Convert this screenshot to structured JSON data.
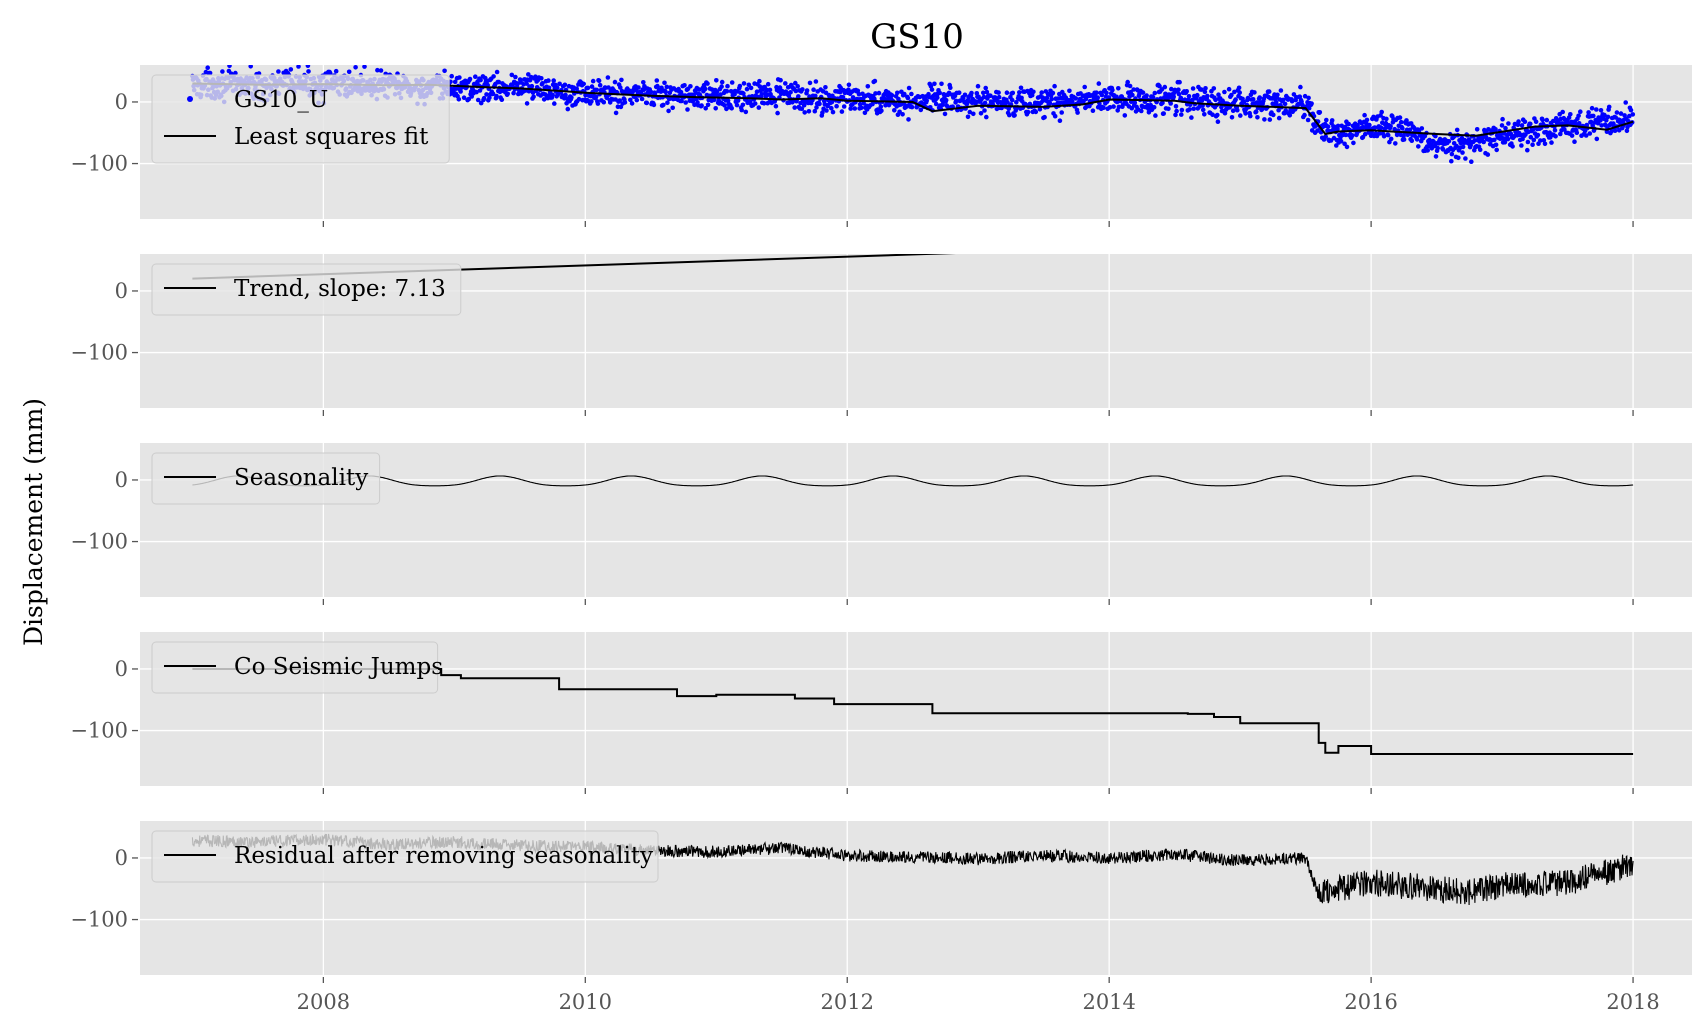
{
  "chart_data": {
    "type": "line",
    "title": "GS10",
    "ylabel": "Displacement (mm)",
    "xlim": [
      2006.6,
      2018.45
    ],
    "ylim": [
      -190,
      60
    ],
    "xticks": [
      2008,
      2010,
      2012,
      2014,
      2016,
      2018
    ],
    "yticks": [
      0,
      -100
    ],
    "tick_labels_y": [
      "0",
      "−100"
    ],
    "grid": true,
    "legend_position": "upper-left",
    "colors": {
      "background": "#e5e5e5",
      "grid": "#ffffff",
      "observed": "#0000ff",
      "line": "#000000"
    },
    "panels": [
      {
        "legend": [
          {
            "label": "GS10_U",
            "marker": "dot",
            "color": "#0000ff"
          },
          {
            "label": "Least squares fit",
            "marker": "line",
            "color": "#000000"
          }
        ],
        "series": [
          {
            "name": "GS10_U",
            "style": "scatter",
            "x": [
              2007.0,
              2007.25,
              2007.5,
              2007.75,
              2008.0,
              2008.25,
              2008.5,
              2008.75,
              2009.0,
              2009.25,
              2009.5,
              2009.75,
              2010.0,
              2010.25,
              2010.5,
              2010.75,
              2011.0,
              2011.25,
              2011.5,
              2011.75,
              2012.0,
              2012.25,
              2012.5,
              2012.75,
              2013.0,
              2013.25,
              2013.5,
              2013.75,
              2014.0,
              2014.25,
              2014.5,
              2014.75,
              2015.0,
              2015.25,
              2015.5,
              2015.62,
              2015.75,
              2016.0,
              2016.25,
              2016.5,
              2016.75,
              2017.0,
              2017.25,
              2017.5,
              2017.75,
              2018.0
            ],
            "y": [
              28,
              30,
              26,
              32,
              28,
              30,
              27,
              22,
              24,
              22,
              26,
              20,
              14,
              12,
              16,
              8,
              10,
              6,
              12,
              4,
              6,
              2,
              0,
              4,
              -2,
              0,
              -4,
              2,
              6,
              4,
              8,
              0,
              -6,
              -4,
              -2,
              -45,
              -55,
              -40,
              -45,
              -75,
              -70,
              -55,
              -45,
              -40,
              -35,
              -30
            ],
            "spread": 14
          },
          {
            "name": "Least squares fit",
            "style": "line",
            "x": [
              2007.0,
              2007.5,
              2008.0,
              2008.5,
              2008.8,
              2009.25,
              2009.5,
              2009.8,
              2010.0,
              2010.5,
              2010.8,
              2011.25,
              2011.5,
              2011.8,
              2012.0,
              2012.5,
              2012.65,
              2013.0,
              2013.5,
              2013.8,
              2014.0,
              2014.5,
              2014.65,
              2015.0,
              2015.5,
              2015.65,
              2015.75,
              2016.0,
              2016.5,
              2016.8,
              2017.25,
              2017.5,
              2017.8,
              2018.0
            ],
            "y": [
              30,
              28,
              29,
              27,
              28,
              24,
              22,
              18,
              15,
              10,
              8,
              6,
              4,
              6,
              2,
              0,
              -15,
              -6,
              -8,
              -4,
              4,
              2,
              -2,
              -6,
              -10,
              -52,
              -48,
              -46,
              -52,
              -55,
              -40,
              -38,
              -45,
              -32
            ]
          }
        ]
      },
      {
        "legend": [
          {
            "label": "Trend, slope: 7.13",
            "marker": "line",
            "color": "#000000"
          }
        ],
        "series": [
          {
            "name": "Trend, slope: 7.13",
            "style": "line",
            "x": [
              2007.0,
              2018.0
            ],
            "y": [
              20,
              98.4
            ]
          }
        ]
      },
      {
        "legend": [
          {
            "label": "Seasonality",
            "marker": "line",
            "color": "#000000"
          }
        ],
        "series": [
          {
            "name": "Seasonality",
            "style": "seasonal",
            "x_range": [
              2007.0,
              2018.0
            ],
            "period": 1.0,
            "amplitude": 8,
            "offset": -3,
            "phase": 0.35
          }
        ]
      },
      {
        "legend": [
          {
            "label": "Co Seismic Jumps",
            "marker": "line",
            "color": "#000000"
          }
        ],
        "series": [
          {
            "name": "Co Seismic Jumps",
            "style": "step",
            "x": [
              2007.0,
              2008.9,
              2009.05,
              2009.8,
              2010.7,
              2011.0,
              2011.6,
              2011.9,
              2012.65,
              2014.6,
              2014.8,
              2015.0,
              2015.6,
              2015.65,
              2015.75,
              2016.0,
              2018.0
            ],
            "y": [
              0,
              -10,
              -15,
              -33,
              -44,
              -42,
              -48,
              -57,
              -72,
              -73,
              -78,
              -88,
              -120,
              -136,
              -125,
              -138,
              -138
            ]
          }
        ]
      },
      {
        "legend": [
          {
            "label": "Residual after removing seasonality",
            "marker": "line",
            "color": "#000000"
          }
        ],
        "series": [
          {
            "name": "Residual after removing seasonality",
            "style": "noisy",
            "x": [
              2007.0,
              2007.5,
              2008.0,
              2008.5,
              2009.0,
              2009.5,
              2010.0,
              2010.5,
              2011.0,
              2011.5,
              2012.0,
              2012.5,
              2013.0,
              2013.5,
              2014.0,
              2014.5,
              2015.0,
              2015.5,
              2015.6,
              2015.75,
              2016.0,
              2016.5,
              2016.75,
              2017.0,
              2017.5,
              2018.0
            ],
            "y": [
              28,
              26,
              30,
              22,
              26,
              20,
              18,
              12,
              10,
              16,
              4,
              2,
              -2,
              4,
              0,
              6,
              -4,
              0,
              -60,
              -50,
              -40,
              -50,
              -55,
              -45,
              -40,
              -10
            ],
            "spread": 10
          }
        ]
      }
    ]
  }
}
